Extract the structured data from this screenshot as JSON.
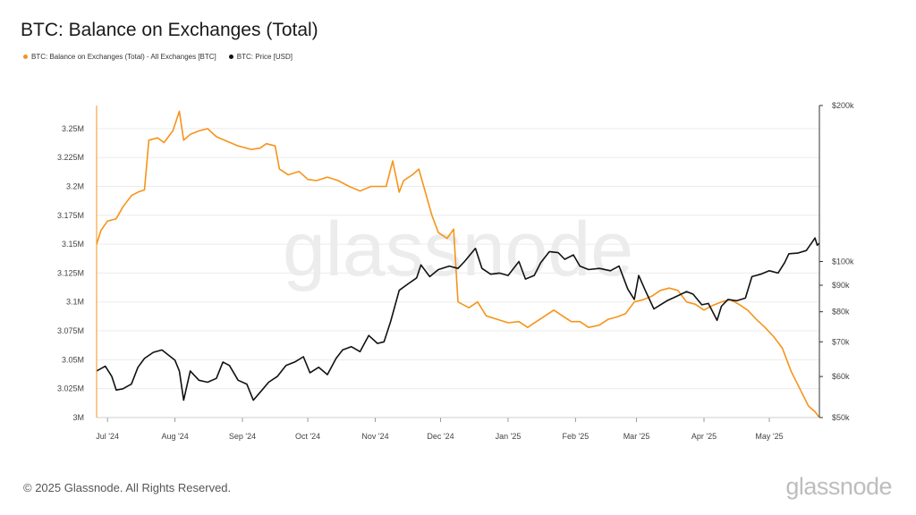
{
  "title": "BTC: Balance on Exchanges (Total)",
  "footer": "© 2025 Glassnode. All Rights Reserved.",
  "brand": "glassnode",
  "watermark": "glassnode",
  "colors": {
    "balance": "#f7931a",
    "price": "#111111",
    "grid": "#ebebeb",
    "axis": "#333333",
    "tick": "#444444",
    "watermark": "#ececec"
  },
  "chart_data": {
    "type": "line",
    "title": "BTC: Balance on Exchanges (Total)",
    "legend_placement": "top-left",
    "grid": true,
    "x_range": [
      "2024-06-26",
      "2025-05-24"
    ],
    "x_ticks": [
      {
        "label": "Jul '24",
        "date": "2024-07-01"
      },
      {
        "label": "Aug '24",
        "date": "2024-08-01"
      },
      {
        "label": "Sep '24",
        "date": "2024-09-01"
      },
      {
        "label": "Oct '24",
        "date": "2024-10-01"
      },
      {
        "label": "Nov '24",
        "date": "2024-11-01"
      },
      {
        "label": "Dec '24",
        "date": "2024-12-01"
      },
      {
        "label": "Jan '25",
        "date": "2025-01-01"
      },
      {
        "label": "Feb '25",
        "date": "2025-02-01"
      },
      {
        "label": "Mar '25",
        "date": "2025-03-01"
      },
      {
        "label": "Apr '25",
        "date": "2025-04-01"
      },
      {
        "label": "May '25",
        "date": "2025-05-01"
      }
    ],
    "y_left": {
      "min": 3000000,
      "max": 3270000,
      "scale": "linear",
      "ticks": [
        {
          "value": 3000000,
          "label": "3M"
        },
        {
          "value": 3025000,
          "label": "3.025M"
        },
        {
          "value": 3050000,
          "label": "3.05M"
        },
        {
          "value": 3075000,
          "label": "3.075M"
        },
        {
          "value": 3100000,
          "label": "3.1M"
        },
        {
          "value": 3125000,
          "label": "3.125M"
        },
        {
          "value": 3150000,
          "label": "3.15M"
        },
        {
          "value": 3175000,
          "label": "3.175M"
        },
        {
          "value": 3200000,
          "label": "3.2M"
        },
        {
          "value": 3225000,
          "label": "3.225M"
        },
        {
          "value": 3250000,
          "label": "3.25M"
        }
      ]
    },
    "y_right": {
      "min": 50000,
      "max": 200000,
      "scale": "log",
      "ticks": [
        {
          "value": 50000,
          "label": "$50k"
        },
        {
          "value": 60000,
          "label": "$60k"
        },
        {
          "value": 70000,
          "label": "$70k"
        },
        {
          "value": 80000,
          "label": "$80k"
        },
        {
          "value": 90000,
          "label": "$90k"
        },
        {
          "value": 100000,
          "label": "$100k"
        },
        {
          "value": 200000,
          "label": "$200k"
        }
      ]
    },
    "series": [
      {
        "name": "BTC: Balance on Exchanges (Total) - All Exchanges [BTC]",
        "axis": "left",
        "points": [
          [
            "2024-06-26",
            3150000
          ],
          [
            "2024-06-28",
            3162000
          ],
          [
            "2024-07-01",
            3170000
          ],
          [
            "2024-07-05",
            3172000
          ],
          [
            "2024-07-08",
            3182000
          ],
          [
            "2024-07-12",
            3192000
          ],
          [
            "2024-07-15",
            3195000
          ],
          [
            "2024-07-18",
            3197000
          ],
          [
            "2024-07-20",
            3240000
          ],
          [
            "2024-07-24",
            3242000
          ],
          [
            "2024-07-27",
            3238000
          ],
          [
            "2024-07-31",
            3248000
          ],
          [
            "2024-08-03",
            3265000
          ],
          [
            "2024-08-05",
            3240000
          ],
          [
            "2024-08-08",
            3245000
          ],
          [
            "2024-08-12",
            3248000
          ],
          [
            "2024-08-16",
            3250000
          ],
          [
            "2024-08-20",
            3243000
          ],
          [
            "2024-08-25",
            3239000
          ],
          [
            "2024-08-30",
            3235000
          ],
          [
            "2024-09-05",
            3232000
          ],
          [
            "2024-09-09",
            3233000
          ],
          [
            "2024-09-12",
            3237000
          ],
          [
            "2024-09-16",
            3235000
          ],
          [
            "2024-09-18",
            3215000
          ],
          [
            "2024-09-22",
            3210000
          ],
          [
            "2024-09-27",
            3213000
          ],
          [
            "2024-10-01",
            3206000
          ],
          [
            "2024-10-05",
            3205000
          ],
          [
            "2024-10-10",
            3208000
          ],
          [
            "2024-10-15",
            3205000
          ],
          [
            "2024-10-20",
            3200000
          ],
          [
            "2024-10-25",
            3196000
          ],
          [
            "2024-10-30",
            3200000
          ],
          [
            "2024-11-03",
            3200000
          ],
          [
            "2024-11-06",
            3200000
          ],
          [
            "2024-11-09",
            3222000
          ],
          [
            "2024-11-12",
            3195000
          ],
          [
            "2024-11-14",
            3205000
          ],
          [
            "2024-11-18",
            3210000
          ],
          [
            "2024-11-21",
            3215000
          ],
          [
            "2024-11-24",
            3195000
          ],
          [
            "2024-11-27",
            3175000
          ],
          [
            "2024-11-30",
            3160000
          ],
          [
            "2024-12-04",
            3155000
          ],
          [
            "2024-12-07",
            3163000
          ],
          [
            "2024-12-09",
            3100000
          ],
          [
            "2024-12-14",
            3095000
          ],
          [
            "2024-12-18",
            3100000
          ],
          [
            "2024-12-22",
            3088000
          ],
          [
            "2024-12-27",
            3085000
          ],
          [
            "2025-01-01",
            3082000
          ],
          [
            "2025-01-06",
            3083000
          ],
          [
            "2025-01-10",
            3078000
          ],
          [
            "2025-01-14",
            3083000
          ],
          [
            "2025-01-18",
            3088000
          ],
          [
            "2025-01-22",
            3093000
          ],
          [
            "2025-01-26",
            3088000
          ],
          [
            "2025-01-30",
            3083000
          ],
          [
            "2025-02-03",
            3083000
          ],
          [
            "2025-02-07",
            3078000
          ],
          [
            "2025-02-12",
            3080000
          ],
          [
            "2025-02-16",
            3085000
          ],
          [
            "2025-02-20",
            3087000
          ],
          [
            "2025-02-24",
            3090000
          ],
          [
            "2025-02-28",
            3100000
          ],
          [
            "2025-03-04",
            3102000
          ],
          [
            "2025-03-08",
            3105000
          ],
          [
            "2025-03-12",
            3110000
          ],
          [
            "2025-03-16",
            3112000
          ],
          [
            "2025-03-20",
            3110000
          ],
          [
            "2025-03-24",
            3100000
          ],
          [
            "2025-03-28",
            3098000
          ],
          [
            "2025-04-01",
            3093000
          ],
          [
            "2025-04-05",
            3097000
          ],
          [
            "2025-04-09",
            3100000
          ],
          [
            "2025-04-13",
            3102000
          ],
          [
            "2025-04-17",
            3098000
          ],
          [
            "2025-04-21",
            3093000
          ],
          [
            "2025-04-25",
            3085000
          ],
          [
            "2025-04-29",
            3078000
          ],
          [
            "2025-05-03",
            3070000
          ],
          [
            "2025-05-07",
            3060000
          ],
          [
            "2025-05-11",
            3040000
          ],
          [
            "2025-05-15",
            3025000
          ],
          [
            "2025-05-19",
            3010000
          ],
          [
            "2025-05-22",
            3005000
          ],
          [
            "2025-05-24",
            3000000
          ]
        ]
      },
      {
        "name": "BTC: Price [USD]",
        "axis": "right",
        "points": [
          [
            "2024-06-26",
            61500
          ],
          [
            "2024-06-30",
            62800
          ],
          [
            "2024-07-03",
            60000
          ],
          [
            "2024-07-05",
            56500
          ],
          [
            "2024-07-08",
            56800
          ],
          [
            "2024-07-12",
            58000
          ],
          [
            "2024-07-15",
            62500
          ],
          [
            "2024-07-18",
            65000
          ],
          [
            "2024-07-22",
            66800
          ],
          [
            "2024-07-26",
            67500
          ],
          [
            "2024-07-29",
            66000
          ],
          [
            "2024-08-01",
            64500
          ],
          [
            "2024-08-03",
            61500
          ],
          [
            "2024-08-05",
            54000
          ],
          [
            "2024-08-08",
            61500
          ],
          [
            "2024-08-12",
            59000
          ],
          [
            "2024-08-16",
            58500
          ],
          [
            "2024-08-20",
            59500
          ],
          [
            "2024-08-23",
            64000
          ],
          [
            "2024-08-26",
            63000
          ],
          [
            "2024-08-30",
            59000
          ],
          [
            "2024-09-03",
            58000
          ],
          [
            "2024-09-06",
            54000
          ],
          [
            "2024-09-10",
            56500
          ],
          [
            "2024-09-13",
            58500
          ],
          [
            "2024-09-17",
            60000
          ],
          [
            "2024-09-21",
            63000
          ],
          [
            "2024-09-25",
            64000
          ],
          [
            "2024-09-29",
            65500
          ],
          [
            "2024-10-02",
            61000
          ],
          [
            "2024-10-06",
            62500
          ],
          [
            "2024-10-10",
            60500
          ],
          [
            "2024-10-14",
            65000
          ],
          [
            "2024-10-17",
            67500
          ],
          [
            "2024-10-21",
            68500
          ],
          [
            "2024-10-25",
            67000
          ],
          [
            "2024-10-29",
            72000
          ],
          [
            "2024-11-02",
            69500
          ],
          [
            "2024-11-05",
            70000
          ],
          [
            "2024-11-08",
            76500
          ],
          [
            "2024-11-12",
            88000
          ],
          [
            "2024-11-16",
            90500
          ],
          [
            "2024-11-20",
            93000
          ],
          [
            "2024-11-22",
            98500
          ],
          [
            "2024-11-26",
            93500
          ],
          [
            "2024-11-30",
            96500
          ],
          [
            "2024-12-05",
            98000
          ],
          [
            "2024-12-09",
            97000
          ],
          [
            "2024-12-12",
            100000
          ],
          [
            "2024-12-17",
            106000
          ],
          [
            "2024-12-20",
            97000
          ],
          [
            "2024-12-24",
            94500
          ],
          [
            "2024-12-28",
            95000
          ],
          [
            "2025-01-01",
            94000
          ],
          [
            "2025-01-06",
            100000
          ],
          [
            "2025-01-09",
            92500
          ],
          [
            "2025-01-13",
            94000
          ],
          [
            "2025-01-16",
            99500
          ],
          [
            "2025-01-20",
            104500
          ],
          [
            "2025-01-24",
            104000
          ],
          [
            "2025-01-27",
            101000
          ],
          [
            "2025-01-31",
            103000
          ],
          [
            "2025-02-03",
            98000
          ],
          [
            "2025-02-07",
            96500
          ],
          [
            "2025-02-12",
            97000
          ],
          [
            "2025-02-17",
            96000
          ],
          [
            "2025-02-21",
            98000
          ],
          [
            "2025-02-25",
            88500
          ],
          [
            "2025-02-28",
            84500
          ],
          [
            "2025-03-02",
            94000
          ],
          [
            "2025-03-05",
            88000
          ],
          [
            "2025-03-09",
            81000
          ],
          [
            "2025-03-12",
            82500
          ],
          [
            "2025-03-15",
            84000
          ],
          [
            "2025-03-19",
            85500
          ],
          [
            "2025-03-24",
            87500
          ],
          [
            "2025-03-27",
            86500
          ],
          [
            "2025-03-31",
            82500
          ],
          [
            "2025-04-03",
            83000
          ],
          [
            "2025-04-07",
            77000
          ],
          [
            "2025-04-09",
            82000
          ],
          [
            "2025-04-12",
            84500
          ],
          [
            "2025-04-16",
            84000
          ],
          [
            "2025-04-20",
            85000
          ],
          [
            "2025-04-23",
            93500
          ],
          [
            "2025-04-27",
            94500
          ],
          [
            "2025-05-01",
            96000
          ],
          [
            "2025-05-05",
            95000
          ],
          [
            "2025-05-08",
            99500
          ],
          [
            "2025-05-10",
            103500
          ],
          [
            "2025-05-14",
            103800
          ],
          [
            "2025-05-18",
            105000
          ],
          [
            "2025-05-21",
            109500
          ],
          [
            "2025-05-22",
            111000
          ],
          [
            "2025-05-23",
            107500
          ],
          [
            "2025-05-24",
            108500
          ]
        ]
      }
    ]
  }
}
